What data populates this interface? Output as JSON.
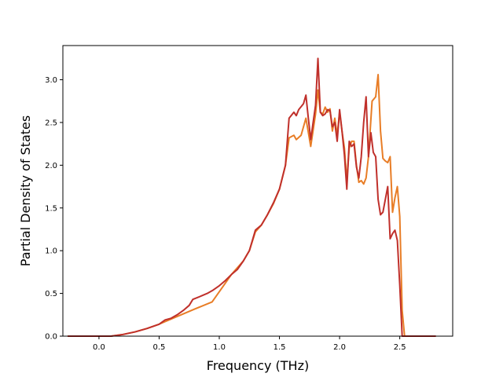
{
  "chart_data": {
    "type": "line",
    "title": "",
    "xlabel": "Frequency (THz)",
    "ylabel": "Partial Density of States",
    "xlim": [
      -0.3,
      2.94
    ],
    "ylim": [
      0.0,
      3.4
    ],
    "xticks": [
      0.0,
      0.5,
      1.0,
      1.5,
      2.0,
      2.5
    ],
    "xtick_labels": [
      "0.0",
      "0.5",
      "1.0",
      "1.5",
      "2.0",
      "2.5"
    ],
    "yticks": [
      0.0,
      0.5,
      1.0,
      1.5,
      2.0,
      2.5,
      3.0
    ],
    "ytick_labels": [
      "0.0",
      "0.5",
      "1.0",
      "1.5",
      "2.0",
      "2.5",
      "3.0"
    ],
    "grid": false,
    "legend": "none",
    "series": [
      {
        "color": "#e87d26",
        "points": [
          [
            -0.26,
            0.0
          ],
          [
            0.1,
            0.0
          ],
          [
            0.2,
            0.02
          ],
          [
            0.3,
            0.05
          ],
          [
            0.4,
            0.09
          ],
          [
            0.5,
            0.14
          ],
          [
            0.6,
            0.2
          ],
          [
            0.7,
            0.26
          ],
          [
            0.8,
            0.32
          ],
          [
            0.94,
            0.4
          ],
          [
            1.0,
            0.52
          ],
          [
            1.05,
            0.62
          ],
          [
            1.1,
            0.72
          ],
          [
            1.15,
            0.8
          ],
          [
            1.2,
            0.88
          ],
          [
            1.25,
            1.0
          ],
          [
            1.3,
            1.22
          ],
          [
            1.35,
            1.3
          ],
          [
            1.4,
            1.42
          ],
          [
            1.45,
            1.55
          ],
          [
            1.5,
            1.72
          ],
          [
            1.55,
            2.0
          ],
          [
            1.58,
            2.32
          ],
          [
            1.62,
            2.35
          ],
          [
            1.64,
            2.3
          ],
          [
            1.68,
            2.35
          ],
          [
            1.72,
            2.55
          ],
          [
            1.76,
            2.22
          ],
          [
            1.8,
            2.6
          ],
          [
            1.82,
            2.88
          ],
          [
            1.84,
            2.62
          ],
          [
            1.86,
            2.6
          ],
          [
            1.88,
            2.68
          ],
          [
            1.9,
            2.62
          ],
          [
            1.92,
            2.66
          ],
          [
            1.94,
            2.4
          ],
          [
            1.96,
            2.55
          ],
          [
            1.98,
            2.35
          ],
          [
            2.0,
            2.62
          ],
          [
            2.02,
            2.4
          ],
          [
            2.04,
            2.2
          ],
          [
            2.06,
            1.82
          ],
          [
            2.08,
            2.2
          ],
          [
            2.1,
            2.28
          ],
          [
            2.12,
            2.28
          ],
          [
            2.14,
            2.0
          ],
          [
            2.16,
            1.8
          ],
          [
            2.18,
            1.82
          ],
          [
            2.2,
            1.78
          ],
          [
            2.22,
            1.85
          ],
          [
            2.24,
            2.1
          ],
          [
            2.27,
            2.75
          ],
          [
            2.3,
            2.8
          ],
          [
            2.32,
            3.06
          ],
          [
            2.34,
            2.4
          ],
          [
            2.36,
            2.08
          ],
          [
            2.38,
            2.05
          ],
          [
            2.4,
            2.03
          ],
          [
            2.42,
            2.1
          ],
          [
            2.44,
            1.45
          ],
          [
            2.46,
            1.62
          ],
          [
            2.48,
            1.75
          ],
          [
            2.5,
            1.4
          ],
          [
            2.52,
            0.3
          ],
          [
            2.54,
            0.0
          ],
          [
            2.8,
            0.0
          ]
        ]
      },
      {
        "color": "#c0302b",
        "points": [
          [
            -0.26,
            0.0
          ],
          [
            0.1,
            0.0
          ],
          [
            0.2,
            0.02
          ],
          [
            0.3,
            0.05
          ],
          [
            0.4,
            0.09
          ],
          [
            0.5,
            0.14
          ],
          [
            0.55,
            0.19
          ],
          [
            0.6,
            0.21
          ],
          [
            0.65,
            0.25
          ],
          [
            0.7,
            0.3
          ],
          [
            0.75,
            0.36
          ],
          [
            0.78,
            0.43
          ],
          [
            0.85,
            0.47
          ],
          [
            0.9,
            0.5
          ],
          [
            0.95,
            0.54
          ],
          [
            1.0,
            0.59
          ],
          [
            1.05,
            0.65
          ],
          [
            1.1,
            0.72
          ],
          [
            1.15,
            0.78
          ],
          [
            1.2,
            0.88
          ],
          [
            1.25,
            1.0
          ],
          [
            1.3,
            1.24
          ],
          [
            1.35,
            1.3
          ],
          [
            1.4,
            1.42
          ],
          [
            1.45,
            1.56
          ],
          [
            1.5,
            1.72
          ],
          [
            1.55,
            2.0
          ],
          [
            1.58,
            2.55
          ],
          [
            1.62,
            2.62
          ],
          [
            1.64,
            2.58
          ],
          [
            1.66,
            2.65
          ],
          [
            1.7,
            2.72
          ],
          [
            1.72,
            2.82
          ],
          [
            1.74,
            2.55
          ],
          [
            1.76,
            2.3
          ],
          [
            1.78,
            2.5
          ],
          [
            1.8,
            2.7
          ],
          [
            1.82,
            3.25
          ],
          [
            1.84,
            2.62
          ],
          [
            1.86,
            2.58
          ],
          [
            1.88,
            2.6
          ],
          [
            1.9,
            2.65
          ],
          [
            1.92,
            2.64
          ],
          [
            1.94,
            2.45
          ],
          [
            1.96,
            2.5
          ],
          [
            1.98,
            2.28
          ],
          [
            2.0,
            2.65
          ],
          [
            2.02,
            2.4
          ],
          [
            2.04,
            2.12
          ],
          [
            2.06,
            1.72
          ],
          [
            2.08,
            2.28
          ],
          [
            2.1,
            2.22
          ],
          [
            2.12,
            2.25
          ],
          [
            2.14,
            1.98
          ],
          [
            2.16,
            1.85
          ],
          [
            2.18,
            2.1
          ],
          [
            2.2,
            2.5
          ],
          [
            2.22,
            2.8
          ],
          [
            2.24,
            2.1
          ],
          [
            2.26,
            2.38
          ],
          [
            2.28,
            2.15
          ],
          [
            2.3,
            2.1
          ],
          [
            2.32,
            1.6
          ],
          [
            2.34,
            1.42
          ],
          [
            2.36,
            1.45
          ],
          [
            2.38,
            1.6
          ],
          [
            2.4,
            1.75
          ],
          [
            2.42,
            1.14
          ],
          [
            2.44,
            1.2
          ],
          [
            2.46,
            1.24
          ],
          [
            2.48,
            1.12
          ],
          [
            2.5,
            0.6
          ],
          [
            2.52,
            0.0
          ],
          [
            2.8,
            0.0
          ]
        ]
      }
    ]
  }
}
